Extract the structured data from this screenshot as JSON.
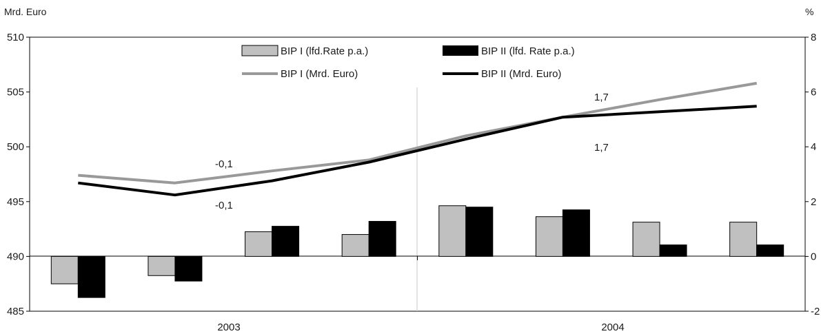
{
  "chart_data": {
    "type": "bar",
    "y_left_unit": "Mrd. Euro",
    "y_right_unit": "%",
    "y_left_ticks": [
      "485",
      "490",
      "495",
      "500",
      "505",
      "510"
    ],
    "y_right_ticks": [
      "-2",
      "0",
      "2",
      "4",
      "6",
      "8"
    ],
    "ylim_left": [
      485,
      510
    ],
    "ylim_right": [
      -2,
      8
    ],
    "year_labels": [
      "2003",
      "2004"
    ],
    "series": [
      {
        "name": "BIP I (lfd.Rate p.a.)",
        "kind": "bar",
        "axis": "right",
        "color": "#c0c0c0",
        "values": [
          -1.0,
          -0.7,
          0.9,
          0.8,
          1.85,
          1.45,
          1.25,
          1.25
        ]
      },
      {
        "name": "BIP II (lfd. Rate p.a.)",
        "kind": "bar",
        "axis": "right",
        "color": "#000000",
        "values": [
          -1.5,
          -0.9,
          1.1,
          1.28,
          1.8,
          1.7,
          0.42,
          0.42
        ]
      },
      {
        "name": "BIP I (Mrd. Euro)",
        "kind": "line",
        "axis": "left",
        "color": "#999999",
        "values": [
          497.4,
          496.7,
          497.8,
          498.8,
          501.0,
          502.7,
          504.3,
          505.8
        ]
      },
      {
        "name": "BIP II (Mrd. Euro)",
        "kind": "line",
        "axis": "left",
        "color": "#000000",
        "values": [
          496.7,
          495.6,
          496.9,
          498.6,
          500.7,
          502.7,
          503.2,
          503.7
        ]
      }
    ],
    "annotations": [
      "-0,1",
      "-0,1",
      "1,7",
      "1,7"
    ],
    "grid": false,
    "legend_position": "top"
  }
}
